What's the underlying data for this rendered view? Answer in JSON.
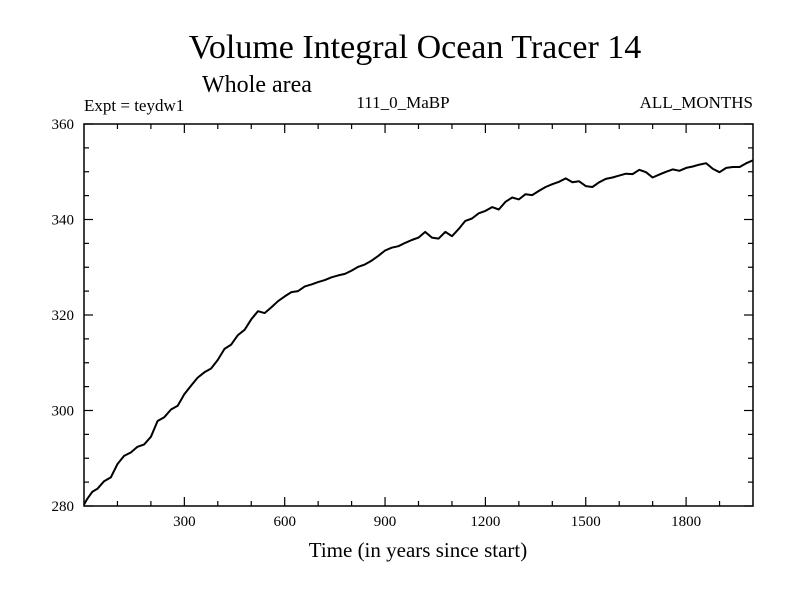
{
  "chart_data": {
    "type": "line",
    "title": "Volume Integral Ocean Tracer 14",
    "subtitle": "Whole area",
    "experiment_label": "Expt = teydw1",
    "run_label": "111_0_MaBP",
    "months_label": "ALL_MONTHS",
    "xlabel": "Time (in years since start)",
    "ylabel": "",
    "xlim": [
      0,
      2000
    ],
    "ylim": [
      280,
      360
    ],
    "x_ticks": [
      300,
      600,
      900,
      1200,
      1500,
      1800
    ],
    "y_ticks": [
      280,
      300,
      320,
      340,
      360
    ],
    "x_minor_step": 100,
    "y_minor_step": 5,
    "series": [
      {
        "name": "Tracer 14",
        "color": "#000000",
        "x": [
          0,
          10,
          25,
          40,
          60,
          80,
          100,
          120,
          140,
          160,
          180,
          200,
          220,
          240,
          260,
          280,
          300,
          320,
          340,
          360,
          380,
          400,
          420,
          440,
          460,
          480,
          500,
          520,
          540,
          560,
          580,
          600,
          620,
          640,
          660,
          680,
          700,
          720,
          740,
          760,
          780,
          800,
          820,
          840,
          860,
          880,
          900,
          920,
          940,
          960,
          980,
          1000,
          1020,
          1040,
          1060,
          1080,
          1100,
          1120,
          1140,
          1160,
          1180,
          1200,
          1220,
          1240,
          1260,
          1280,
          1300,
          1320,
          1340,
          1360,
          1380,
          1400,
          1420,
          1440,
          1460,
          1480,
          1500,
          1520,
          1540,
          1560,
          1580,
          1600,
          1620,
          1640,
          1660,
          1680,
          1700,
          1720,
          1740,
          1760,
          1780,
          1800,
          1820,
          1840,
          1860,
          1880,
          1900,
          1920,
          1940,
          1960,
          1980,
          2000
        ],
        "values": [
          280.3,
          281.5,
          283.0,
          283.6,
          285.2,
          286.0,
          288.8,
          290.5,
          291.2,
          292.4,
          292.9,
          294.5,
          297.8,
          298.6,
          300.2,
          301.0,
          303.4,
          305.2,
          306.9,
          308.0,
          308.8,
          310.6,
          312.9,
          313.8,
          315.8,
          316.9,
          319.1,
          320.8,
          320.4,
          321.6,
          322.9,
          323.9,
          324.8,
          325.0,
          326.0,
          326.4,
          326.9,
          327.3,
          327.9,
          328.3,
          328.6,
          329.3,
          330.1,
          330.6,
          331.4,
          332.4,
          333.5,
          334.1,
          334.4,
          335.1,
          335.7,
          336.2,
          337.4,
          336.2,
          336.0,
          337.4,
          336.5,
          338.0,
          339.7,
          340.2,
          341.3,
          341.8,
          342.6,
          342.1,
          343.7,
          344.6,
          344.2,
          345.3,
          345.1,
          346.0,
          346.8,
          347.4,
          347.9,
          348.6,
          347.8,
          348.0,
          347.0,
          346.8,
          347.8,
          348.5,
          348.8,
          349.2,
          349.6,
          349.5,
          350.4,
          349.9,
          348.8,
          349.4,
          350.0,
          350.5,
          350.2,
          350.8,
          351.1,
          351.5,
          351.8,
          350.6,
          349.9,
          350.8,
          351.0,
          351.0,
          351.8,
          352.4
        ]
      }
    ]
  }
}
